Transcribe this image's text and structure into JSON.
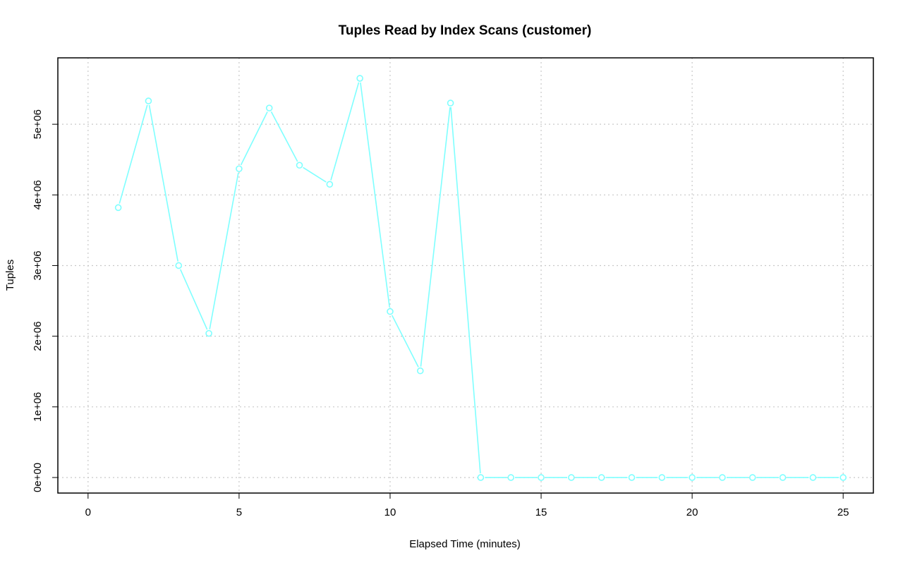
{
  "chart_data": {
    "type": "line",
    "title": "Tuples Read by Index Scans (customer)",
    "xlabel": "Elapsed Time (minutes)",
    "ylabel": "Tuples",
    "xlim": [
      -1,
      26
    ],
    "ylim": [
      -220000,
      5940000
    ],
    "x_ticks": [
      0,
      5,
      10,
      15,
      20,
      25
    ],
    "x_tick_labels": [
      "0",
      "5",
      "10",
      "15",
      "20",
      "25"
    ],
    "y_ticks": [
      0,
      1000000,
      2000000,
      3000000,
      4000000,
      5000000
    ],
    "y_tick_labels": [
      "0e+00",
      "1e+06",
      "2e+06",
      "3e+06",
      "4e+06",
      "5e+06"
    ],
    "grid": true,
    "series": [
      {
        "color": "#7fffff",
        "marker": "open-circle",
        "x": [
          1,
          2,
          3,
          4,
          5,
          6,
          7,
          8,
          9,
          10,
          11,
          12,
          13,
          14,
          15,
          16,
          17,
          18,
          19,
          20,
          21,
          22,
          23,
          24,
          25
        ],
        "values": [
          3820000,
          5330000,
          3000000,
          2040000,
          4370000,
          5230000,
          4420000,
          4150000,
          5650000,
          2350000,
          1510000,
          5300000,
          0,
          0,
          0,
          0,
          0,
          0,
          0,
          0,
          0,
          0,
          0,
          0,
          0
        ]
      }
    ]
  }
}
